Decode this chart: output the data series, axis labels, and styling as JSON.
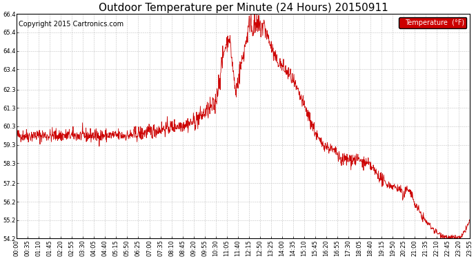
{
  "title": "Outdoor Temperature per Minute (24 Hours) 20150911",
  "copyright": "Copyright 2015 Cartronics.com",
  "legend_label": "Temperature  (°F)",
  "line_color": "#cc0000",
  "legend_bg": "#cc0000",
  "legend_text_color": "#ffffff",
  "background_color": "#ffffff",
  "grid_color": "#bbbbbb",
  "ylim": [
    54.2,
    66.4
  ],
  "yticks": [
    54.2,
    55.2,
    56.2,
    57.2,
    58.3,
    59.3,
    60.3,
    61.3,
    62.3,
    63.4,
    64.4,
    65.4,
    66.4
  ],
  "xtick_labels": [
    "00:00",
    "00:35",
    "01:10",
    "01:45",
    "02:20",
    "02:55",
    "03:30",
    "04:05",
    "04:40",
    "05:15",
    "05:50",
    "06:25",
    "07:00",
    "07:35",
    "08:10",
    "08:45",
    "09:20",
    "09:55",
    "10:30",
    "11:05",
    "11:40",
    "12:15",
    "12:50",
    "13:25",
    "14:00",
    "14:35",
    "15:10",
    "15:45",
    "16:20",
    "16:55",
    "17:30",
    "18:05",
    "18:40",
    "19:15",
    "19:50",
    "20:25",
    "21:00",
    "21:35",
    "22:10",
    "22:45",
    "23:20",
    "23:55"
  ],
  "title_fontsize": 11,
  "axis_fontsize": 6,
  "copyright_fontsize": 7
}
